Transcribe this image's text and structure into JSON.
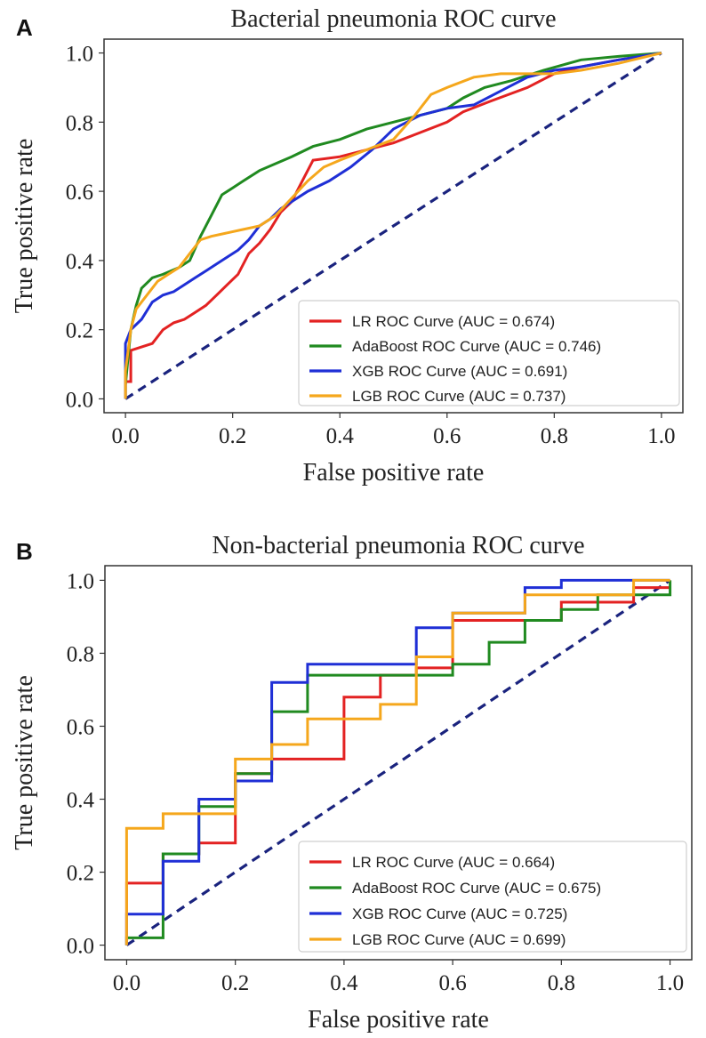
{
  "chart_data": [
    {
      "panel_label": "A",
      "type": "line",
      "title": "Bacterial pneumonia ROC curve",
      "xlabel": "False positive rate",
      "ylabel": "True positive rate",
      "xlim": [
        -0.04,
        1.04
      ],
      "ylim": [
        -0.04,
        1.04
      ],
      "xticks": [
        "0.0",
        "0.2",
        "0.4",
        "0.6",
        "0.8",
        "1.0"
      ],
      "yticks": [
        "0.0",
        "0.2",
        "0.4",
        "0.6",
        "0.8",
        "1.0"
      ],
      "grid": false,
      "legend_position": "lower-right",
      "diagonal": {
        "color": "#1a237e",
        "style": "dashed"
      },
      "series": [
        {
          "name": "LR ROC Curve (AUC = 0.674)",
          "color": "#e32222",
          "points": [
            [
              0,
              0
            ],
            [
              0,
              0.05
            ],
            [
              0.01,
              0.05
            ],
            [
              0.01,
              0.14
            ],
            [
              0.03,
              0.15
            ],
            [
              0.05,
              0.16
            ],
            [
              0.07,
              0.2
            ],
            [
              0.09,
              0.22
            ],
            [
              0.11,
              0.23
            ],
            [
              0.13,
              0.25
            ],
            [
              0.15,
              0.27
            ],
            [
              0.17,
              0.3
            ],
            [
              0.19,
              0.33
            ],
            [
              0.21,
              0.36
            ],
            [
              0.23,
              0.42
            ],
            [
              0.25,
              0.45
            ],
            [
              0.27,
              0.49
            ],
            [
              0.29,
              0.54
            ],
            [
              0.31,
              0.57
            ],
            [
              0.33,
              0.63
            ],
            [
              0.35,
              0.69
            ],
            [
              0.4,
              0.7
            ],
            [
              0.45,
              0.72
            ],
            [
              0.5,
              0.74
            ],
            [
              0.55,
              0.77
            ],
            [
              0.6,
              0.8
            ],
            [
              0.63,
              0.83
            ],
            [
              0.68,
              0.86
            ],
            [
              0.75,
              0.9
            ],
            [
              0.8,
              0.94
            ],
            [
              0.85,
              0.96
            ],
            [
              0.92,
              0.98
            ],
            [
              1,
              1
            ]
          ]
        },
        {
          "name": "AdaBoost ROC Curve (AUC = 0.746)",
          "color": "#208a20",
          "points": [
            [
              0,
              0
            ],
            [
              0,
              0.04
            ],
            [
              0.01,
              0.2
            ],
            [
              0.02,
              0.27
            ],
            [
              0.03,
              0.32
            ],
            [
              0.05,
              0.35
            ],
            [
              0.07,
              0.36
            ],
            [
              0.1,
              0.38
            ],
            [
              0.12,
              0.4
            ],
            [
              0.14,
              0.47
            ],
            [
              0.16,
              0.53
            ],
            [
              0.18,
              0.59
            ],
            [
              0.2,
              0.61
            ],
            [
              0.22,
              0.63
            ],
            [
              0.25,
              0.66
            ],
            [
              0.28,
              0.68
            ],
            [
              0.31,
              0.7
            ],
            [
              0.35,
              0.73
            ],
            [
              0.4,
              0.75
            ],
            [
              0.45,
              0.78
            ],
            [
              0.5,
              0.8
            ],
            [
              0.55,
              0.82
            ],
            [
              0.6,
              0.84
            ],
            [
              0.63,
              0.87
            ],
            [
              0.67,
              0.9
            ],
            [
              0.72,
              0.92
            ],
            [
              0.78,
              0.95
            ],
            [
              0.85,
              0.98
            ],
            [
              0.92,
              0.99
            ],
            [
              1,
              1
            ]
          ]
        },
        {
          "name": "XGB ROC Curve (AUC = 0.691)",
          "color": "#1f2fd6",
          "points": [
            [
              0,
              0
            ],
            [
              0,
              0.16
            ],
            [
              0.01,
              0.2
            ],
            [
              0.03,
              0.23
            ],
            [
              0.05,
              0.28
            ],
            [
              0.07,
              0.3
            ],
            [
              0.09,
              0.31
            ],
            [
              0.11,
              0.33
            ],
            [
              0.13,
              0.35
            ],
            [
              0.15,
              0.37
            ],
            [
              0.17,
              0.39
            ],
            [
              0.19,
              0.41
            ],
            [
              0.21,
              0.43
            ],
            [
              0.23,
              0.46
            ],
            [
              0.25,
              0.5
            ],
            [
              0.27,
              0.52
            ],
            [
              0.29,
              0.55
            ],
            [
              0.31,
              0.57
            ],
            [
              0.34,
              0.6
            ],
            [
              0.38,
              0.63
            ],
            [
              0.42,
              0.67
            ],
            [
              0.46,
              0.72
            ],
            [
              0.5,
              0.78
            ],
            [
              0.55,
              0.82
            ],
            [
              0.6,
              0.84
            ],
            [
              0.65,
              0.85
            ],
            [
              0.7,
              0.89
            ],
            [
              0.75,
              0.93
            ],
            [
              0.8,
              0.95
            ],
            [
              0.85,
              0.96
            ],
            [
              0.92,
              0.98
            ],
            [
              1,
              1
            ]
          ]
        },
        {
          "name": "LGB ROC Curve (AUC = 0.737)",
          "color": "#f5a71c",
          "points": [
            [
              0,
              0
            ],
            [
              0,
              0.08
            ],
            [
              0.01,
              0.2
            ],
            [
              0.02,
              0.26
            ],
            [
              0.04,
              0.3
            ],
            [
              0.06,
              0.34
            ],
            [
              0.08,
              0.36
            ],
            [
              0.1,
              0.38
            ],
            [
              0.12,
              0.42
            ],
            [
              0.14,
              0.46
            ],
            [
              0.16,
              0.47
            ],
            [
              0.19,
              0.48
            ],
            [
              0.22,
              0.49
            ],
            [
              0.25,
              0.5
            ],
            [
              0.28,
              0.53
            ],
            [
              0.31,
              0.58
            ],
            [
              0.34,
              0.63
            ],
            [
              0.37,
              0.67
            ],
            [
              0.4,
              0.69
            ],
            [
              0.45,
              0.72
            ],
            [
              0.5,
              0.75
            ],
            [
              0.54,
              0.82
            ],
            [
              0.57,
              0.88
            ],
            [
              0.6,
              0.9
            ],
            [
              0.65,
              0.93
            ],
            [
              0.7,
              0.94
            ],
            [
              0.8,
              0.94
            ],
            [
              0.85,
              0.95
            ],
            [
              0.92,
              0.97
            ],
            [
              1,
              1
            ]
          ]
        }
      ]
    },
    {
      "panel_label": "B",
      "type": "line",
      "title": "Non-bacterial pneumonia ROC curve",
      "xlabel": "False positive rate",
      "ylabel": "True positive rate",
      "xlim": [
        -0.04,
        1.04
      ],
      "ylim": [
        -0.04,
        1.04
      ],
      "xticks": [
        "0.0",
        "0.2",
        "0.4",
        "0.6",
        "0.8",
        "1.0"
      ],
      "yticks": [
        "0.0",
        "0.2",
        "0.4",
        "0.6",
        "0.8",
        "1.0"
      ],
      "grid": false,
      "legend_position": "lower-right",
      "diagonal": {
        "color": "#1a237e",
        "style": "dashed"
      },
      "series": [
        {
          "name": "LR ROC Curve (AUC = 0.664)",
          "color": "#e32222",
          "points": [
            [
              0,
              0
            ],
            [
              0,
              0.17
            ],
            [
              0.067,
              0.17
            ],
            [
              0.067,
              0.25
            ],
            [
              0.133,
              0.25
            ],
            [
              0.133,
              0.28
            ],
            [
              0.2,
              0.28
            ],
            [
              0.2,
              0.47
            ],
            [
              0.267,
              0.47
            ],
            [
              0.267,
              0.51
            ],
            [
              0.4,
              0.51
            ],
            [
              0.4,
              0.68
            ],
            [
              0.467,
              0.68
            ],
            [
              0.467,
              0.74
            ],
            [
              0.533,
              0.74
            ],
            [
              0.533,
              0.76
            ],
            [
              0.6,
              0.76
            ],
            [
              0.6,
              0.89
            ],
            [
              0.733,
              0.89
            ],
            [
              0.8,
              0.89
            ],
            [
              0.8,
              0.94
            ],
            [
              0.933,
              0.94
            ],
            [
              0.933,
              0.98
            ],
            [
              1,
              0.98
            ]
          ]
        },
        {
          "name": "AdaBoost ROC Curve (AUC = 0.675)",
          "color": "#208a20",
          "points": [
            [
              0,
              0
            ],
            [
              0,
              0.02
            ],
            [
              0.067,
              0.02
            ],
            [
              0.067,
              0.25
            ],
            [
              0.133,
              0.25
            ],
            [
              0.133,
              0.38
            ],
            [
              0.2,
              0.38
            ],
            [
              0.2,
              0.47
            ],
            [
              0.267,
              0.47
            ],
            [
              0.267,
              0.64
            ],
            [
              0.333,
              0.64
            ],
            [
              0.333,
              0.74
            ],
            [
              0.533,
              0.74
            ],
            [
              0.6,
              0.74
            ],
            [
              0.6,
              0.77
            ],
            [
              0.667,
              0.77
            ],
            [
              0.667,
              0.83
            ],
            [
              0.733,
              0.83
            ],
            [
              0.733,
              0.89
            ],
            [
              0.8,
              0.89
            ],
            [
              0.8,
              0.92
            ],
            [
              0.867,
              0.92
            ],
            [
              0.867,
              0.96
            ],
            [
              1,
              0.96
            ],
            [
              1,
              1
            ]
          ]
        },
        {
          "name": "XGB ROC Curve (AUC = 0.725)",
          "color": "#1f2fd6",
          "points": [
            [
              0,
              0
            ],
            [
              0,
              0.085
            ],
            [
              0.067,
              0.085
            ],
            [
              0.067,
              0.23
            ],
            [
              0.133,
              0.23
            ],
            [
              0.133,
              0.4
            ],
            [
              0.2,
              0.4
            ],
            [
              0.2,
              0.45
            ],
            [
              0.267,
              0.45
            ],
            [
              0.267,
              0.72
            ],
            [
              0.333,
              0.72
            ],
            [
              0.333,
              0.77
            ],
            [
              0.533,
              0.77
            ],
            [
              0.533,
              0.87
            ],
            [
              0.6,
              0.87
            ],
            [
              0.6,
              0.91
            ],
            [
              0.733,
              0.91
            ],
            [
              0.733,
              0.98
            ],
            [
              0.8,
              0.98
            ],
            [
              0.8,
              1
            ],
            [
              1,
              1
            ]
          ]
        },
        {
          "name": "LGB ROC Curve (AUC = 0.699)",
          "color": "#f5a71c",
          "points": [
            [
              0,
              0
            ],
            [
              0,
              0.32
            ],
            [
              0.067,
              0.32
            ],
            [
              0.067,
              0.36
            ],
            [
              0.2,
              0.36
            ],
            [
              0.2,
              0.51
            ],
            [
              0.267,
              0.51
            ],
            [
              0.267,
              0.55
            ],
            [
              0.333,
              0.55
            ],
            [
              0.333,
              0.62
            ],
            [
              0.467,
              0.62
            ],
            [
              0.467,
              0.66
            ],
            [
              0.533,
              0.66
            ],
            [
              0.533,
              0.79
            ],
            [
              0.6,
              0.79
            ],
            [
              0.6,
              0.91
            ],
            [
              0.733,
              0.91
            ],
            [
              0.733,
              0.96
            ],
            [
              0.933,
              0.96
            ],
            [
              0.933,
              1
            ],
            [
              1,
              1
            ]
          ]
        }
      ]
    }
  ]
}
